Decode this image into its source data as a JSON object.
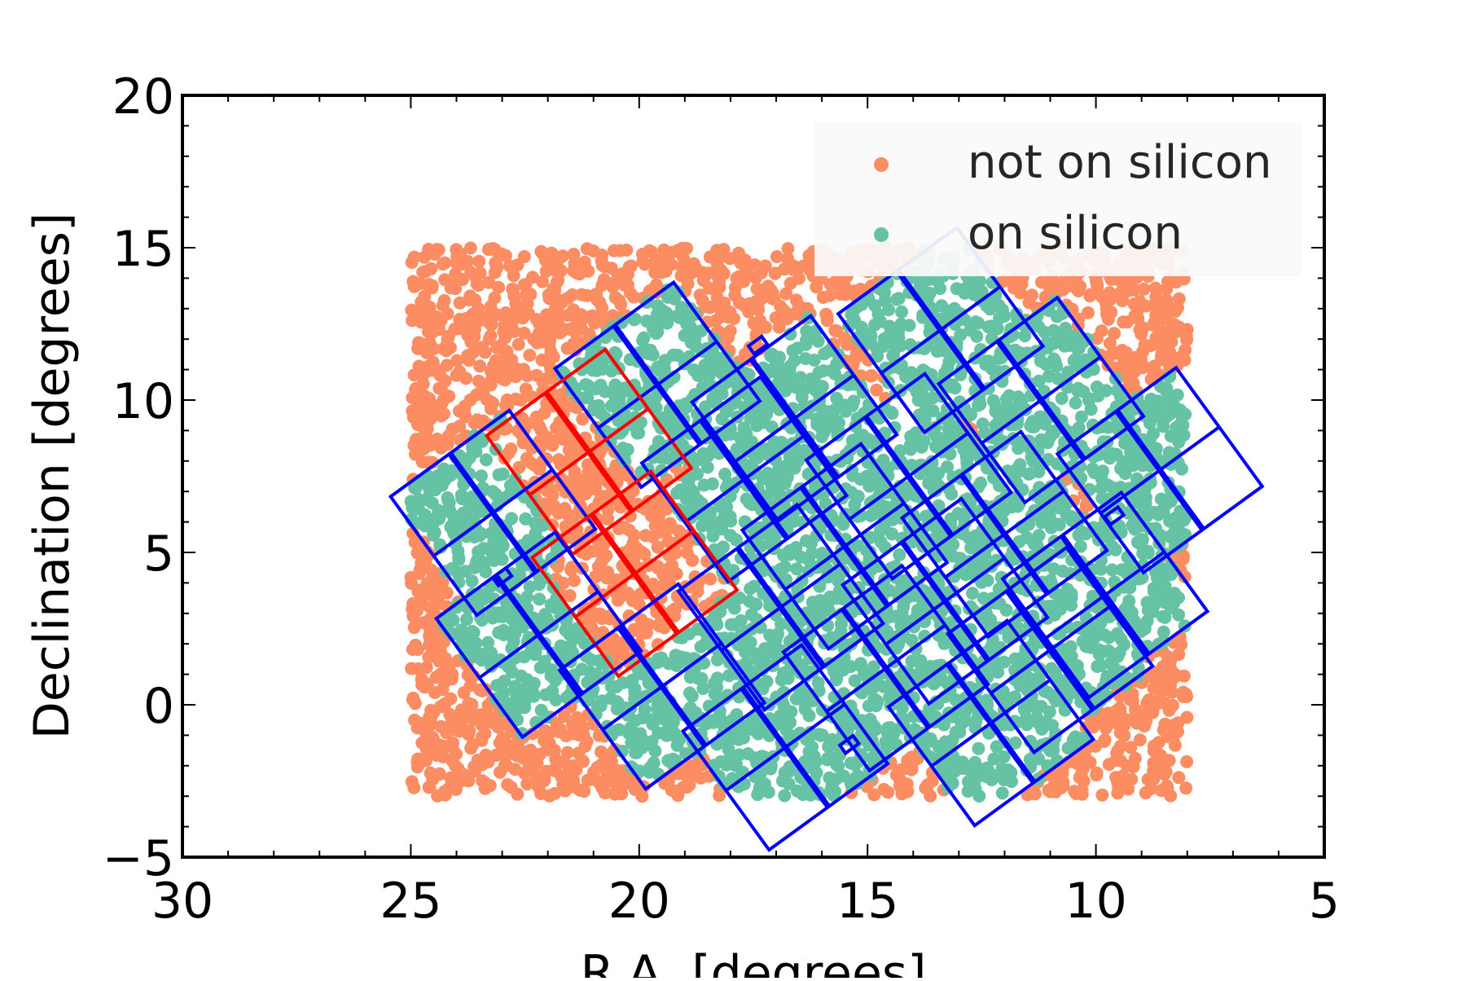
{
  "chart_data": {
    "type": "scatter",
    "title": "",
    "xlabel": "R.A. [degrees]",
    "ylabel": "Declination [degrees]",
    "xlim": [
      30,
      5
    ],
    "ylim": [
      -5,
      20
    ],
    "x_inverted": true,
    "x_ticks": [
      30,
      25,
      20,
      15,
      10,
      5
    ],
    "x_tick_labels": [
      "30",
      "25",
      "20",
      "15",
      "10",
      "5"
    ],
    "y_ticks": [
      -5,
      0,
      5,
      10,
      15,
      20
    ],
    "y_tick_labels": [
      "−5",
      "0",
      "5",
      "10",
      "15",
      "20"
    ],
    "grid": false,
    "legend_position": "top-right",
    "legend": [
      {
        "label": "not on silicon",
        "color": "#fc8d62"
      },
      {
        "label": "on silicon",
        "color": "#66c2a5"
      }
    ],
    "scatter_region": {
      "ra_range": [
        25,
        8
      ],
      "dec_range": [
        -3,
        15
      ]
    },
    "footprint": {
      "description": "camera CCD footprint: 21 rotated 2x2 modules plus 4 small focus sensors",
      "active_color": "#0000ff",
      "inactive_color": "#ff0000",
      "rotation_deg": -36,
      "modules": [
        {
          "ra": 19.6,
          "dec": 10.5,
          "status": "active"
        },
        {
          "ra": 13.4,
          "dec": 12.3,
          "status": "active"
        },
        {
          "ra": 16.6,
          "dec": 9.4,
          "status": "active"
        },
        {
          "ra": 11.2,
          "dec": 10.0,
          "status": "active"
        },
        {
          "ra": 21.1,
          "dec": 8.3,
          "status": "inactive"
        },
        {
          "ra": 17.7,
          "dec": 7.4,
          "status": "active"
        },
        {
          "ra": 14.1,
          "dec": 7.5,
          "status": "active"
        },
        {
          "ra": 8.6,
          "dec": 7.7,
          "status": "active"
        },
        {
          "ra": 23.2,
          "dec": 6.3,
          "status": "active"
        },
        {
          "ra": 15.5,
          "dec": 5.2,
          "status": "active"
        },
        {
          "ra": 12.0,
          "dec": 5.6,
          "status": "active"
        },
        {
          "ra": 20.1,
          "dec": 4.3,
          "status": "inactive"
        },
        {
          "ra": 9.8,
          "dec": 3.6,
          "status": "active"
        },
        {
          "ra": 16.9,
          "dec": 3.2,
          "status": "active"
        },
        {
          "ra": 13.3,
          "dec": 3.4,
          "status": "active"
        },
        {
          "ra": 22.2,
          "dec": 2.3,
          "status": "active"
        },
        {
          "ra": 11.0,
          "dec": 1.8,
          "status": "active"
        },
        {
          "ra": 14.6,
          "dec": 1.2,
          "status": "active"
        },
        {
          "ra": 19.5,
          "dec": 0.6,
          "status": "active"
        },
        {
          "ra": 12.3,
          "dec": -0.6,
          "status": "active"
        },
        {
          "ra": 16.8,
          "dec": -1.4,
          "status": "active"
        }
      ],
      "focus_sensors": [
        {
          "ra": 17.4,
          "dec": 11.8
        },
        {
          "ra": 9.6,
          "dec": 6.2
        },
        {
          "ra": 23.0,
          "dec": 4.2
        },
        {
          "ra": 15.4,
          "dec": -1.3
        }
      ]
    }
  }
}
